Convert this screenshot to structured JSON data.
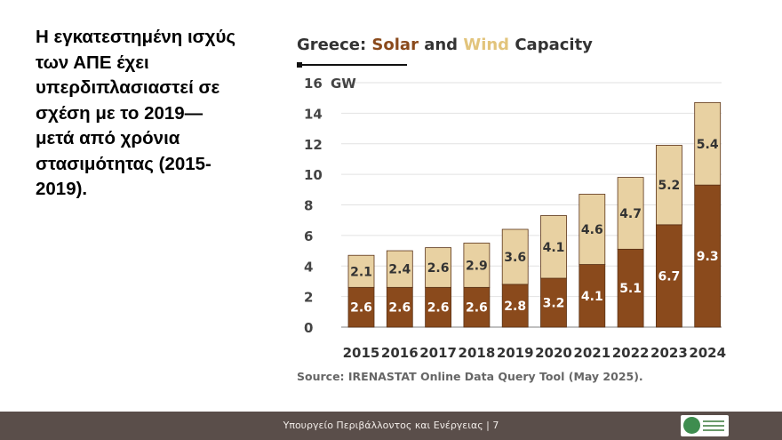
{
  "heading": "Η εγκατεστημένη ισχύς\nτων ΑΠΕ έχει\nυπερδιπλασιαστεί σε\nσχέση με το 2019—\nμετά από χρόνια\nστασιμότητας (2015-\n2019).",
  "chart_data": {
    "type": "bar",
    "stacked": true,
    "title_parts": [
      {
        "text": "Greece: ",
        "color": "#333333"
      },
      {
        "text": "Solar",
        "color": "#8a4a1c"
      },
      {
        "text": " and ",
        "color": "#333333"
      },
      {
        "text": "Wind",
        "color": "#e2c47c"
      },
      {
        "text": " Capacity",
        "color": "#333333"
      }
    ],
    "title": "Greece: Solar and Wind Capacity",
    "unit_label": "GW",
    "categories": [
      "2015",
      "2016",
      "2017",
      "2018",
      "2019",
      "2020",
      "2021",
      "2022",
      "2023",
      "2024"
    ],
    "series": [
      {
        "name": "Solar",
        "color": "#8a4a1c",
        "label_color": "#ffffff",
        "values": [
          2.6,
          2.6,
          2.6,
          2.6,
          2.8,
          3.2,
          4.1,
          5.1,
          6.7,
          9.3
        ]
      },
      {
        "name": "Wind",
        "color": "#e8d1a2",
        "label_color": "#333333",
        "values": [
          2.1,
          2.4,
          2.6,
          2.9,
          3.6,
          4.1,
          4.6,
          4.7,
          5.2,
          5.4
        ]
      }
    ],
    "yticks": [
      0,
      2,
      4,
      6,
      8,
      10,
      12,
      14,
      16
    ],
    "ylim": [
      0,
      16
    ],
    "grid": true
  },
  "source": "Source: IRENASTAT Online Data Query Tool (May 2025).",
  "footer": {
    "text": "Υπουργείο Περιβάλλοντος και Ενέργειας | 7",
    "background": "#5a4e4a"
  }
}
